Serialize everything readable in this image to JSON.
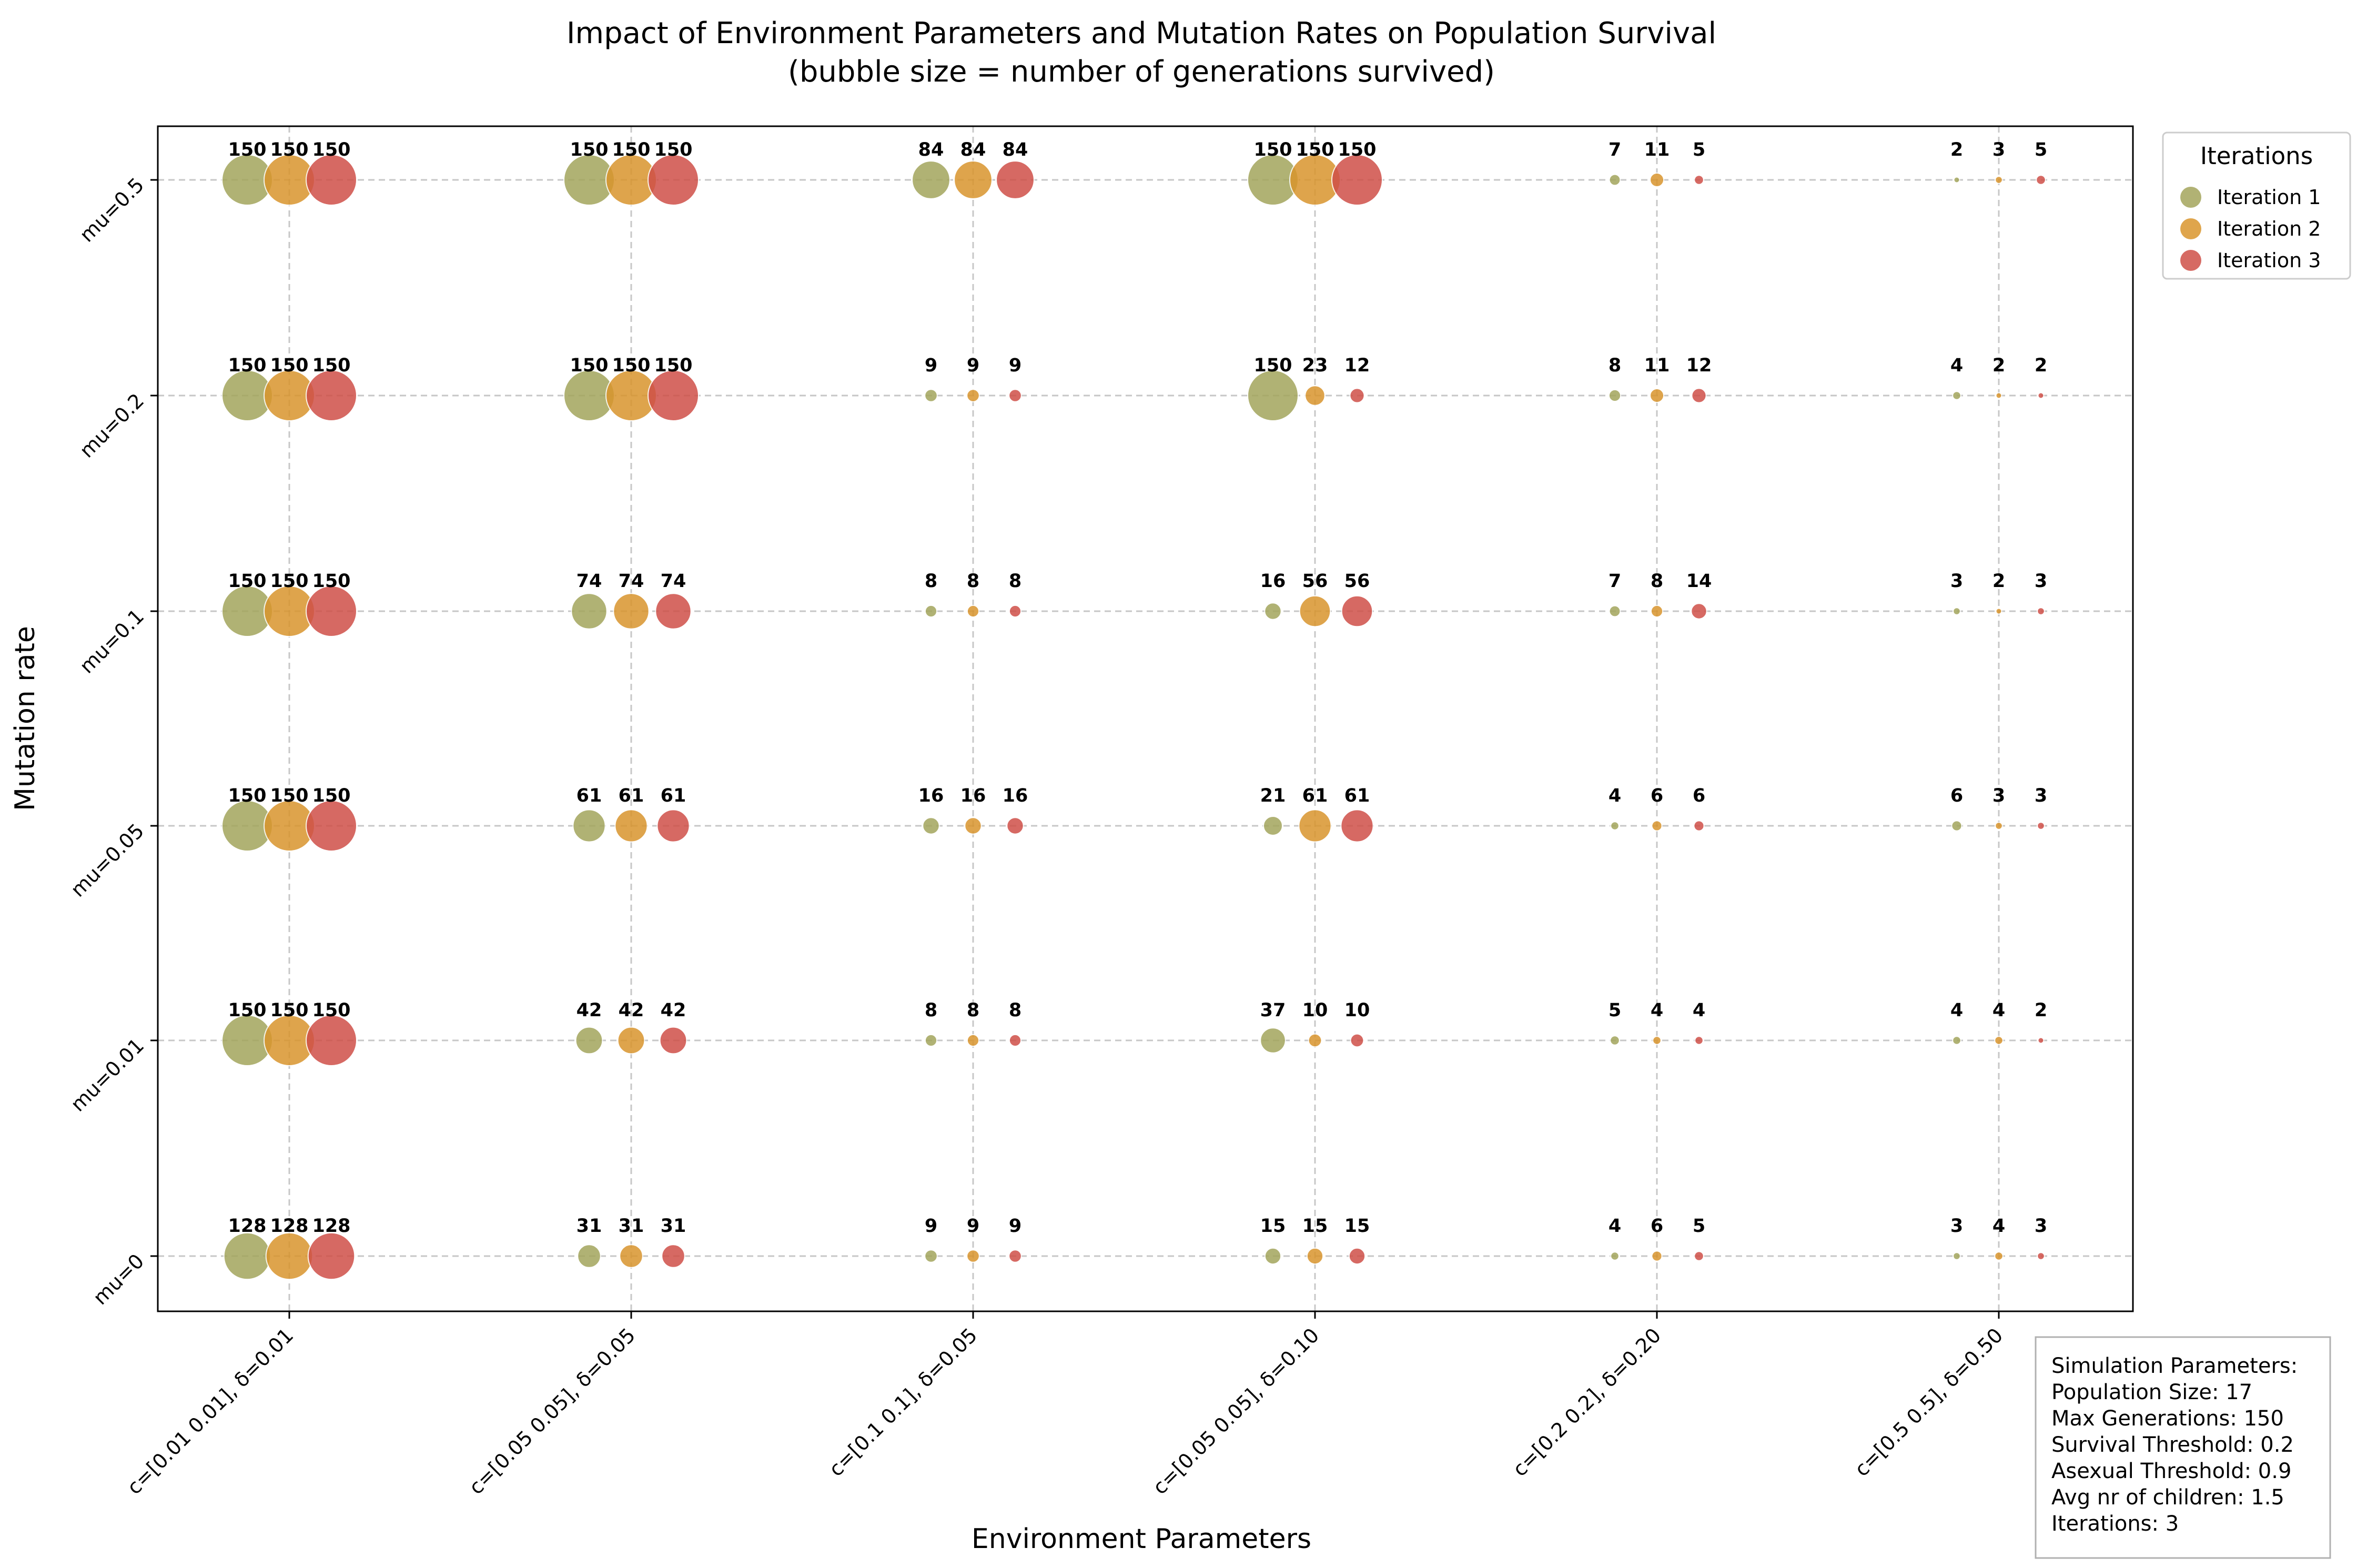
{
  "chart_data": {
    "type": "scatter",
    "title": "Impact of Environment Parameters and Mutation Rates on Population Survival",
    "subtitle": "(bubble size = number of generations survived)",
    "xlabel": "Environment Parameters",
    "ylabel": "Mutation rate",
    "categories": [
      "c=[0.01 0.01], δ=0.01",
      "c=[0.05 0.05], δ=0.05",
      "c=[0.1 0.1], δ=0.05",
      "c=[0.05 0.05], δ=0.10",
      "c=[0.2 0.2], δ=0.20",
      "c=[0.5 0.5], δ=0.50"
    ],
    "y_categories": [
      "mu=0",
      "mu=0.01",
      "mu=0.05",
      "mu=0.1",
      "mu=0.2",
      "mu=0.5"
    ],
    "grid": true,
    "legend_title": "Iterations",
    "legend_position": "outside-top-right",
    "series": [
      {
        "name": "Iteration 1",
        "color": "#a3a55c",
        "values": [
          [
            128,
            31,
            9,
            15,
            4,
            3
          ],
          [
            150,
            42,
            8,
            37,
            5,
            4
          ],
          [
            150,
            61,
            16,
            21,
            4,
            6
          ],
          [
            150,
            74,
            8,
            16,
            7,
            3
          ],
          [
            150,
            150,
            9,
            150,
            8,
            4
          ],
          [
            150,
            150,
            84,
            150,
            7,
            2
          ]
        ]
      },
      {
        "name": "Iteration 2",
        "color": "#d9952d",
        "values": [
          [
            128,
            31,
            9,
            15,
            6,
            4
          ],
          [
            150,
            42,
            8,
            10,
            4,
            4
          ],
          [
            150,
            61,
            16,
            61,
            6,
            3
          ],
          [
            150,
            74,
            8,
            56,
            8,
            2
          ],
          [
            150,
            150,
            9,
            23,
            11,
            2
          ],
          [
            150,
            150,
            84,
            150,
            11,
            3
          ]
        ]
      },
      {
        "name": "Iteration 3",
        "color": "#cf5048",
        "values": [
          [
            128,
            31,
            9,
            15,
            5,
            3
          ],
          [
            150,
            42,
            8,
            10,
            4,
            2
          ],
          [
            150,
            61,
            16,
            61,
            6,
            3
          ],
          [
            150,
            74,
            8,
            56,
            14,
            3
          ],
          [
            150,
            150,
            9,
            12,
            12,
            2
          ],
          [
            150,
            150,
            84,
            150,
            5,
            5
          ]
        ]
      }
    ]
  },
  "info_box": {
    "lines": [
      "Simulation Parameters:",
      "Population Size: 17",
      "Max Generations: 150",
      "Survival Threshold: 0.2",
      "Asexual Threshold: 0.9",
      "Avg nr of children: 1.5",
      "Iterations: 3"
    ]
  }
}
